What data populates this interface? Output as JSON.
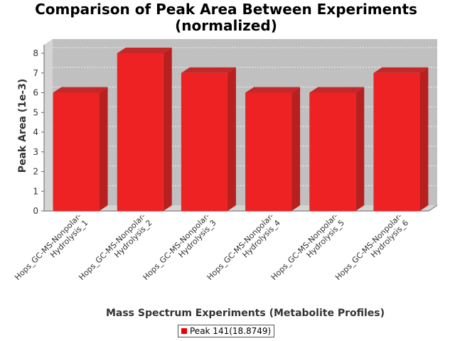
{
  "chart_data": {
    "type": "bar",
    "title_line1": "Comparison of Peak Area Between Experiments",
    "title_line2": "(normalized)",
    "xlabel": "Mass Spectrum Experiments (Metabolite Profiles)",
    "ylabel": "Peak Area (1e-3)",
    "ylim": [
      0,
      8
    ],
    "yticks": [
      "0",
      "1",
      "2",
      "3",
      "4",
      "5",
      "6",
      "7",
      "8"
    ],
    "categories": [
      [
        "Hops_GC-MS-Nonpolar-",
        "Hydrolysis_1"
      ],
      [
        "Hops_GC-MS-Nonpolar-",
        "Hydrolysis_2"
      ],
      [
        "Hops_GC-MS-Nonpolar-",
        "Hydrolysis_3"
      ],
      [
        "Hops_GC-MS-Nonpolar-",
        "Hydrolysis_4"
      ],
      [
        "Hops_GC-MS-Nonpolar-",
        "Hydrolysis_5"
      ],
      [
        "Hops_GC-MS-Nonpolar-",
        "Hydrolysis_6"
      ]
    ],
    "series": [
      {
        "name": "Peak 141(18.8749)",
        "values": [
          6,
          8,
          7,
          6,
          6,
          7
        ]
      }
    ],
    "colors": {
      "bar_front": "#ee2222",
      "bar_side": "#b82020",
      "bar_top": "#c42828",
      "plot_bg": "#c0c0c0",
      "legend_swatch": "#ee0000"
    },
    "grid": true,
    "legend_position": "bottom"
  }
}
